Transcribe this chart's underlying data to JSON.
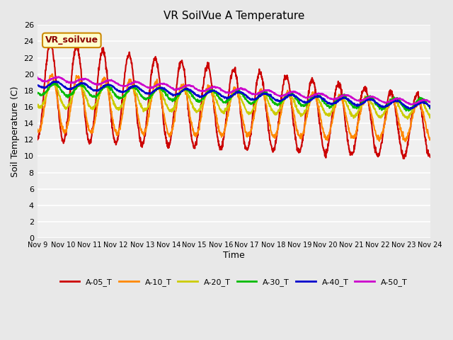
{
  "title": "VR SoilVue A Temperature",
  "ylabel": "Soil Temperature (C)",
  "xlabel": "Time",
  "watermark": "VR_soilvue",
  "ylim": [
    0,
    26
  ],
  "yticks": [
    0,
    2,
    4,
    6,
    8,
    10,
    12,
    14,
    16,
    18,
    20,
    22,
    24,
    26
  ],
  "num_days": 15,
  "xtick_labels": [
    "Nov 9",
    "Nov 10",
    "Nov 11",
    "Nov 12",
    "Nov 13",
    "Nov 14",
    "Nov 15",
    "Nov 16",
    "Nov 17",
    "Nov 18",
    "Nov 19",
    "Nov 20",
    "Nov 21",
    "Nov 22",
    "Nov 23",
    "Nov 24"
  ],
  "series": {
    "A-05_T": {
      "color": "#cc0000",
      "linewidth": 1.5
    },
    "A-10_T": {
      "color": "#ff8800",
      "linewidth": 1.5
    },
    "A-20_T": {
      "color": "#cccc00",
      "linewidth": 1.5
    },
    "A-30_T": {
      "color": "#00bb00",
      "linewidth": 1.5
    },
    "A-40_T": {
      "color": "#0000cc",
      "linewidth": 1.5
    },
    "A-50_T": {
      "color": "#cc00cc",
      "linewidth": 1.5
    }
  },
  "bg_color": "#e8e8e8",
  "plot_bg_color": "#f0f0f0",
  "grid_color": "#ffffff",
  "watermark_bg": "#ffffcc",
  "watermark_border": "#cc8800",
  "watermark_text_color": "#8B0000"
}
